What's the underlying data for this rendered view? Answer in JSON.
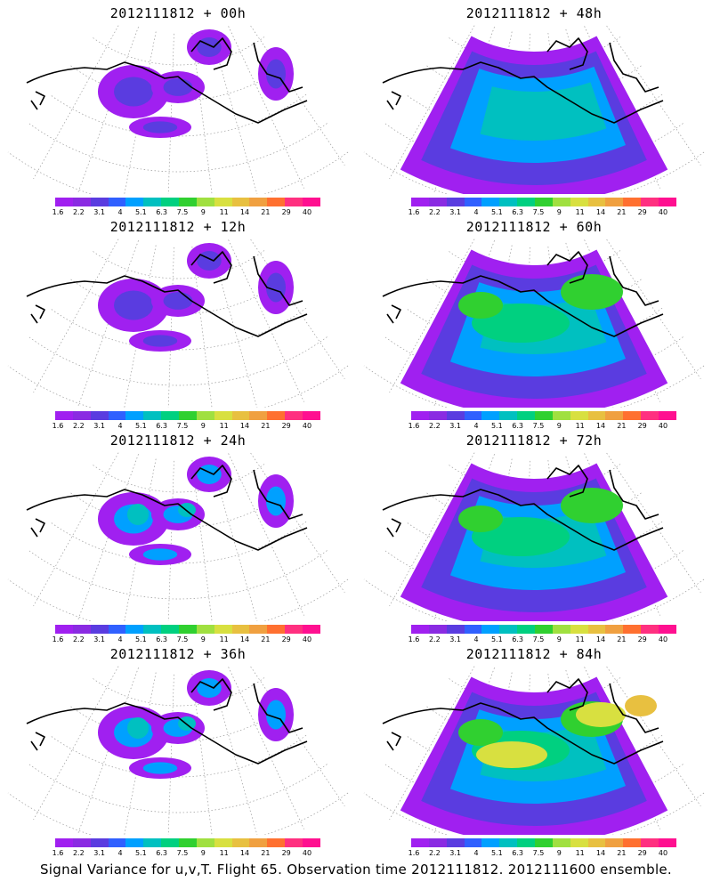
{
  "panels": [
    {
      "title": "2012111812 + 00h",
      "intensity": 0
    },
    {
      "title": "2012111812 + 48h",
      "intensity": 2
    },
    {
      "title": "2012111812 + 12h",
      "intensity": 0
    },
    {
      "title": "2012111812 + 60h",
      "intensity": 3
    },
    {
      "title": "2012111812 + 24h",
      "intensity": 1
    },
    {
      "title": "2012111812 + 72h",
      "intensity": 3
    },
    {
      "title": "2012111812 + 36h",
      "intensity": 1
    },
    {
      "title": "2012111812 + 84h",
      "intensity": 4
    }
  ],
  "colorbar": {
    "labels": [
      "1.6",
      "2.2",
      "3.1",
      "4",
      "5.1",
      "6.3",
      "7.5",
      "9",
      "11",
      "14",
      "21",
      "29",
      "40"
    ],
    "colors": [
      "#a020f0",
      "#8a2be2",
      "#5a3ce0",
      "#3060ff",
      "#00a0ff",
      "#00c0c0",
      "#00d080",
      "#30d030",
      "#a0e040",
      "#d8e040",
      "#e8c040",
      "#f0a040",
      "#ff7030",
      "#ff3080",
      "#ff1090"
    ]
  },
  "caption": "Signal Variance for u,v,T. Flight 65. Observation time 2012111812. 2012111600 ensemble."
}
